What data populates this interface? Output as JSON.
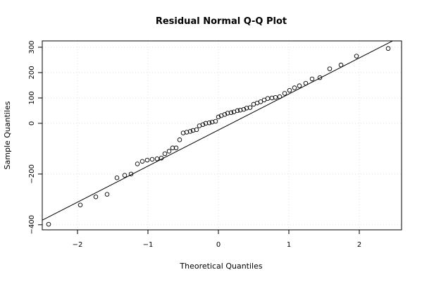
{
  "chart_data": {
    "type": "scatter",
    "title": "Residual Normal Q-Q Plot",
    "xlabel": "Theoretical Quantiles",
    "ylabel": "Sample Quantiles",
    "xlim": [
      -2.5,
      2.6
    ],
    "ylim": [
      -420,
      325
    ],
    "x_ticks": [
      -2,
      -1,
      0,
      1,
      2
    ],
    "x_tick_labels": [
      "−2",
      "−1",
      "0",
      "1",
      "2"
    ],
    "y_ticks": [
      -400,
      -200,
      0,
      100,
      200,
      300
    ],
    "y_tick_labels": [
      "−400",
      "−200",
      "0",
      "100",
      "200",
      "300"
    ],
    "grid": true,
    "reference_line": {
      "x": [
        -2.5,
        2.6
      ],
      "y": [
        -382,
        343
      ]
    },
    "points": [
      {
        "x": -2.41,
        "y": -398
      },
      {
        "x": -1.96,
        "y": -322
      },
      {
        "x": -1.74,
        "y": -290
      },
      {
        "x": -1.58,
        "y": -280
      },
      {
        "x": -1.44,
        "y": -215
      },
      {
        "x": -1.33,
        "y": -205
      },
      {
        "x": -1.24,
        "y": -200
      },
      {
        "x": -1.15,
        "y": -160
      },
      {
        "x": -1.08,
        "y": -150
      },
      {
        "x": -1.01,
        "y": -145
      },
      {
        "x": -0.94,
        "y": -142
      },
      {
        "x": -0.87,
        "y": -140
      },
      {
        "x": -0.81,
        "y": -137
      },
      {
        "x": -0.76,
        "y": -120
      },
      {
        "x": -0.7,
        "y": -110
      },
      {
        "x": -0.65,
        "y": -97
      },
      {
        "x": -0.6,
        "y": -97
      },
      {
        "x": -0.55,
        "y": -65
      },
      {
        "x": -0.5,
        "y": -38
      },
      {
        "x": -0.45,
        "y": -35
      },
      {
        "x": -0.4,
        "y": -32
      },
      {
        "x": -0.36,
        "y": -28
      },
      {
        "x": -0.31,
        "y": -25
      },
      {
        "x": -0.27,
        "y": -10
      },
      {
        "x": -0.22,
        "y": -5
      },
      {
        "x": -0.18,
        "y": 0
      },
      {
        "x": -0.13,
        "y": 2
      },
      {
        "x": -0.09,
        "y": 5
      },
      {
        "x": -0.04,
        "y": 8
      },
      {
        "x": 0.0,
        "y": 25
      },
      {
        "x": 0.04,
        "y": 30
      },
      {
        "x": 0.09,
        "y": 35
      },
      {
        "x": 0.13,
        "y": 40
      },
      {
        "x": 0.18,
        "y": 42
      },
      {
        "x": 0.22,
        "y": 45
      },
      {
        "x": 0.27,
        "y": 50
      },
      {
        "x": 0.31,
        "y": 52
      },
      {
        "x": 0.36,
        "y": 55
      },
      {
        "x": 0.4,
        "y": 60
      },
      {
        "x": 0.45,
        "y": 62
      },
      {
        "x": 0.5,
        "y": 75
      },
      {
        "x": 0.55,
        "y": 80
      },
      {
        "x": 0.6,
        "y": 85
      },
      {
        "x": 0.65,
        "y": 92
      },
      {
        "x": 0.7,
        "y": 98
      },
      {
        "x": 0.76,
        "y": 100
      },
      {
        "x": 0.81,
        "y": 102
      },
      {
        "x": 0.87,
        "y": 105
      },
      {
        "x": 0.94,
        "y": 118
      },
      {
        "x": 1.01,
        "y": 130
      },
      {
        "x": 1.08,
        "y": 140
      },
      {
        "x": 1.15,
        "y": 148
      },
      {
        "x": 1.24,
        "y": 158
      },
      {
        "x": 1.33,
        "y": 175
      },
      {
        "x": 1.44,
        "y": 180
      },
      {
        "x": 1.58,
        "y": 215
      },
      {
        "x": 1.74,
        "y": 230
      },
      {
        "x": 1.96,
        "y": 265
      },
      {
        "x": 2.41,
        "y": 295
      }
    ]
  }
}
